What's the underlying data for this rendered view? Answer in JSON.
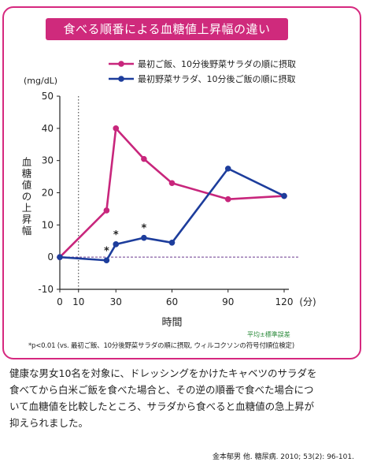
{
  "title": "食べる順番による血糖値上昇幅の違い",
  "chart_data": {
    "type": "line",
    "title": "食べる順番による血糖値上昇幅の違い",
    "unit_label": "(mg/dL)",
    "ylabel": "血糖値の上昇幅",
    "xlabel": "時間",
    "x_unit": "(分)",
    "x": [
      0,
      25,
      30,
      45,
      60,
      90,
      120
    ],
    "x_ticks": [
      0,
      10,
      30,
      60,
      90,
      120
    ],
    "y_ticks": [
      -10,
      0,
      10,
      20,
      30,
      40,
      50
    ],
    "xlim": [
      0,
      120
    ],
    "ylim": [
      -10,
      50
    ],
    "reference_vline_x": 10,
    "reference_hline_y": 0,
    "series": [
      {
        "name": "最初ご飯、10分後野菜サラダの順に摂取",
        "color": "#c8267c",
        "values": [
          0,
          14.5,
          40,
          30.5,
          23,
          18,
          19
        ]
      },
      {
        "name": "最初野菜サラダ、10分後ご飯の順に摂取",
        "color": "#1d3d9c",
        "values": [
          0,
          -1,
          4,
          6,
          4.5,
          27.5,
          19
        ]
      }
    ],
    "annotations": [
      {
        "text": "*",
        "x": 25,
        "y": -1
      },
      {
        "text": "*",
        "x": 30,
        "y": 4
      },
      {
        "text": "*",
        "x": 45,
        "y": 6
      }
    ]
  },
  "note_stat": "平均±標準誤差",
  "footnote": "*p<0.01 (vs. 最初ご飯、10分後野菜サラダの順に摂取, ウィルコクソンの符号付順位検定)",
  "caption": "健康な男女10名を対象に、ドレッシングをかけたキャベツのサラダを\n食べてから白米ご飯を食べた場合と、その逆の順番で食べた場合につ\nいて血糖値を比較したところ、サラダから食べると血糖値の急上昇が\n抑えられました。",
  "citation": "金本郁男 他. 糖尿病. 2010; 53(2): 96-101."
}
